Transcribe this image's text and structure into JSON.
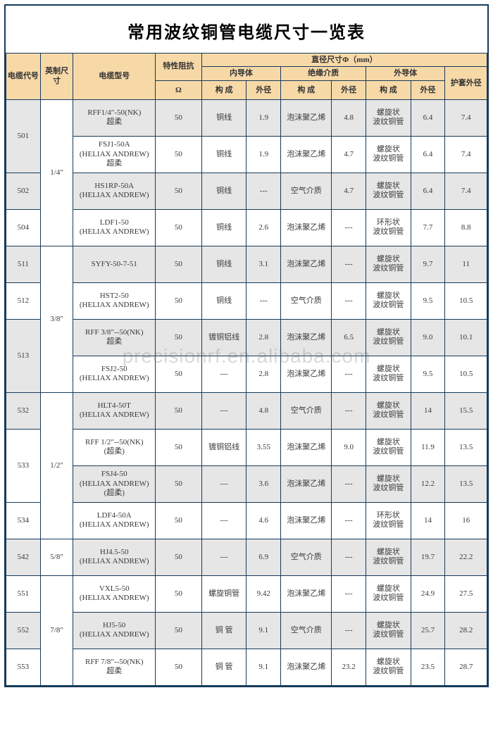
{
  "title": "常用波纹铜管电缆尺寸一览表",
  "watermark": "precisionrf.en.alibaba.com",
  "headers": {
    "code": "电缆代号",
    "size": "英制尺寸",
    "model": "电缆型号",
    "imp": "特性阻抗",
    "imp_unit": "Ω",
    "diam": "直径尺寸Φ（mm）",
    "inner": "内导体",
    "insul": "绝缘介质",
    "outer": "外导体",
    "sheath": "护套外径",
    "comp": "构 成",
    "od": "外径"
  },
  "groups": [
    {
      "size": "1/4″",
      "rows": [
        {
          "code": "501",
          "rs": 2,
          "shade": true,
          "model": "RFF1/4″-50(NK)\n超柔",
          "imp": "50",
          "ic": "铜线",
          "iod": "1.9",
          "ins": "泡沫聚乙烯",
          "insod": "4.8",
          "oc": "螺旋状\n波纹铜管",
          "ood": "6.4",
          "sh": "7.4"
        },
        {
          "code": "",
          "shade": false,
          "model": "FSJ1-50A\n(HELIAX ANDREW)\n超柔",
          "imp": "50",
          "ic": "铜线",
          "iod": "1.9",
          "ins": "泡沫聚乙烯",
          "insod": "4.7",
          "oc": "螺旋状\n波纹铜管",
          "ood": "6.4",
          "sh": "7.4"
        },
        {
          "code": "502",
          "rs": 1,
          "shade": true,
          "model": "HS1RP-50A\n(HELIAX ANDREW)",
          "imp": "50",
          "ic": "铜线",
          "iod": "---",
          "ins": "空气介质",
          "insod": "4.7",
          "oc": "螺旋状\n波纹铜管",
          "ood": "6.4",
          "sh": "7.4"
        },
        {
          "code": "504",
          "rs": 1,
          "shade": false,
          "model": "LDF1-50\n(HELIAX ANDREW)",
          "imp": "50",
          "ic": "铜线",
          "iod": "2.6",
          "ins": "泡沫聚乙烯",
          "insod": "---",
          "oc": "环形状\n波纹铜管",
          "ood": "7.7",
          "sh": "8.8"
        }
      ]
    },
    {
      "size": "3/8″",
      "rows": [
        {
          "code": "511",
          "rs": 1,
          "shade": true,
          "model": "SYFY-50-7-51",
          "imp": "50",
          "ic": "铜线",
          "iod": "3.1",
          "ins": "泡沫聚乙烯",
          "insod": "---",
          "oc": "螺旋状\n波纹铜管",
          "ood": "9.7",
          "sh": "11"
        },
        {
          "code": "512",
          "rs": 1,
          "shade": false,
          "model": "HST2-50\n(HELIAX ANDREW)",
          "imp": "50",
          "ic": "铜线",
          "iod": "---",
          "ins": "空气介质",
          "insod": "---",
          "oc": "螺旋状\n波纹铜管",
          "ood": "9.5",
          "sh": "10.5"
        },
        {
          "code": "513",
          "rs": 2,
          "shade": true,
          "model": "RFF 3/8″--50(NK)\n超柔",
          "imp": "50",
          "ic": "镀铜铝线",
          "iod": "2.8",
          "ins": "泡沫聚乙烯",
          "insod": "6.5",
          "oc": "螺旋状\n波纹铜管",
          "ood": "9.0",
          "sh": "10.1"
        },
        {
          "code": "",
          "shade": false,
          "model": "FSJ2-50\n(HELIAX ANDREW)",
          "imp": "50",
          "ic": "---",
          "iod": "2.8",
          "ins": "泡沫聚乙烯",
          "insod": "---",
          "oc": "螺旋状\n波纹铜管",
          "ood": "9.5",
          "sh": "10.5"
        }
      ]
    },
    {
      "size": "1/2″",
      "rows": [
        {
          "code": "532",
          "rs": 1,
          "shade": true,
          "model": "HLT4-50T\n(HELIAX ANDREW)",
          "imp": "50",
          "ic": "---",
          "iod": "4.8",
          "ins": "空气介质",
          "insod": "---",
          "oc": "螺旋状\n波纹铜管",
          "ood": "14",
          "sh": "15.5"
        },
        {
          "code": "533",
          "rs": 2,
          "shade": false,
          "model": "RFF 1/2″--50(NK)\n(超柔)",
          "imp": "50",
          "ic": "镀铜铝线",
          "iod": "3.55",
          "ins": "泡沫聚乙烯",
          "insod": "9.0",
          "oc": "螺旋状\n波纹铜管",
          "ood": "11.9",
          "sh": "13.5"
        },
        {
          "code": "",
          "shade": true,
          "model": "FSJ4-50\n(HELIAX  ANDREW)\n(超柔)",
          "imp": "50",
          "ic": "---",
          "iod": "3.6",
          "ins": "泡沫聚乙烯",
          "insod": "---",
          "oc": "螺旋状\n波纹铜管",
          "ood": "12.2",
          "sh": "13.5"
        },
        {
          "code": "534",
          "rs": 1,
          "shade": false,
          "model": "LDF4-50A\n(HELIAX  ANDREW)",
          "imp": "50",
          "ic": "---",
          "iod": "4.6",
          "ins": "泡沫聚乙烯",
          "insod": "---",
          "oc": "环形状\n波纹铜管",
          "ood": "14",
          "sh": "16"
        }
      ]
    },
    {
      "size": "5/8″",
      "rows": [
        {
          "code": "542",
          "rs": 1,
          "shade": true,
          "model": "HJ4.5-50\n(HELIAX ANDREW)",
          "imp": "50",
          "ic": "---",
          "iod": "6.9",
          "ins": "空气介质",
          "insod": "---",
          "oc": "螺旋状\n波纹铜管",
          "ood": "19.7",
          "sh": "22.2"
        }
      ]
    },
    {
      "size": "7/8″",
      "rows": [
        {
          "code": "551",
          "rs": 1,
          "shade": false,
          "model": "VXL5-50\n(HELIAX ANDREW)",
          "imp": "50",
          "ic": "螺旋铜管",
          "iod": "9.42",
          "ins": "泡沫聚乙烯",
          "insod": "---",
          "oc": "螺旋状\n波纹铜管",
          "ood": "24.9",
          "sh": "27.5"
        },
        {
          "code": "552",
          "rs": 1,
          "shade": true,
          "model": "HJ5-50\n(HELIAX ANDREW)",
          "imp": "50",
          "ic": "铜 管",
          "iod": "9.1",
          "ins": "空气介质",
          "insod": "---",
          "oc": "螺旋状\n波纹铜管",
          "ood": "25.7",
          "sh": "28.2"
        },
        {
          "code": "553",
          "rs": 1,
          "shade": false,
          "model": "RFF 7/8″--50(NK)\n超柔",
          "imp": "50",
          "ic": "铜 管",
          "iod": "9.1",
          "ins": "泡沫聚乙烯",
          "insod": "23.2",
          "oc": "螺旋状\n波纹铜管",
          "ood": "23.5",
          "sh": "28.7"
        }
      ]
    }
  ]
}
